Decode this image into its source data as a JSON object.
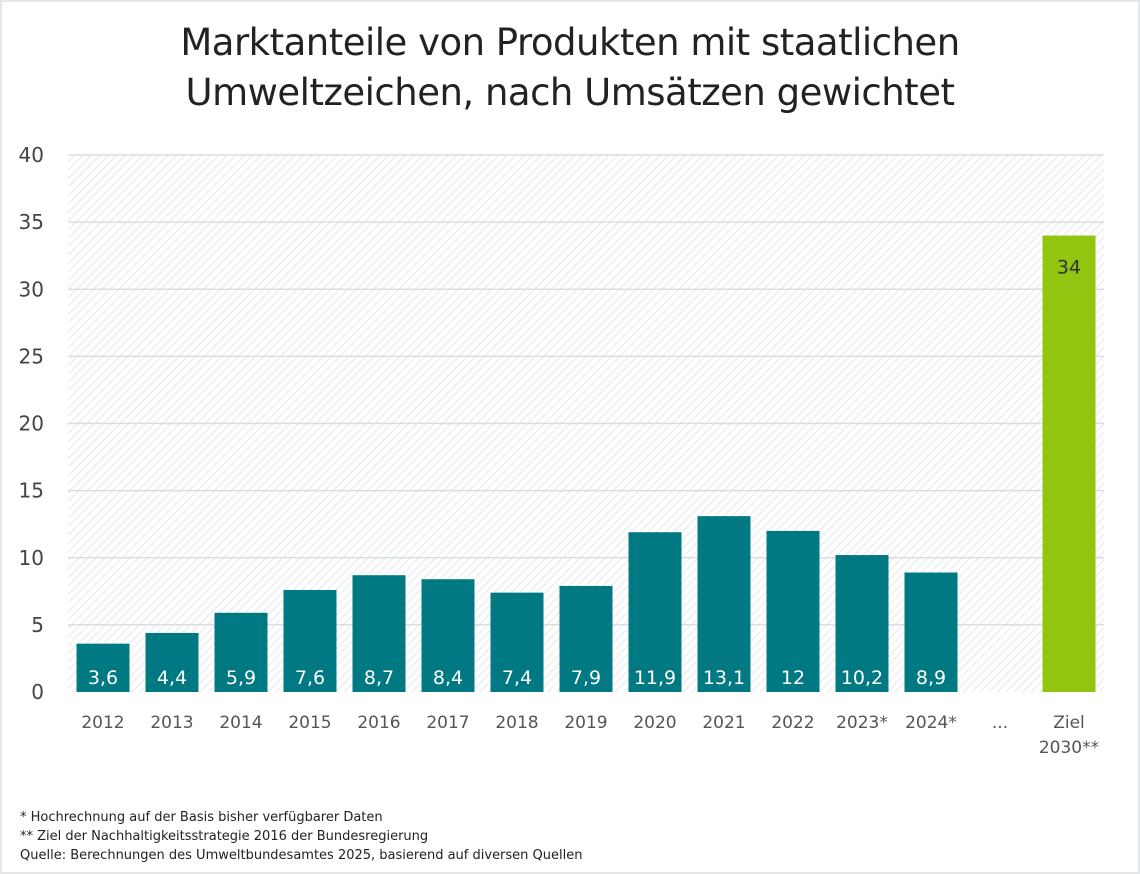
{
  "chart_data": {
    "type": "bar",
    "title": "Marktanteile von Produkten mit staatlichen Umweltzeichen, nach Umsätzen gewichtet",
    "title_lines": [
      "Marktanteile von Produkten mit staatlichen",
      "Umweltzeichen, nach Umsätzen gewichtet"
    ],
    "categories": [
      "2012",
      "2013",
      "2014",
      "2015",
      "2016",
      "2017",
      "2018",
      "2019",
      "2020",
      "2021",
      "2022",
      "2023*",
      "2024*",
      "...",
      "Ziel\n2030**"
    ],
    "values": [
      3.6,
      4.4,
      5.9,
      7.6,
      8.7,
      8.4,
      7.4,
      7.9,
      11.9,
      13.1,
      12,
      10.2,
      8.9,
      null,
      34
    ],
    "data_labels": [
      "3,6",
      "4,4",
      "5,9",
      "7,6",
      "8,7",
      "8,4",
      "7,4",
      "7,9",
      "11,9",
      "13,1",
      "12",
      "10,2",
      "8,9",
      "",
      "34"
    ],
    "ylim": [
      0,
      40
    ],
    "yticks": [
      0,
      5,
      10,
      15,
      20,
      25,
      30,
      35,
      40
    ],
    "grid": true,
    "colors": {
      "bar": "#007982",
      "target": "#91c50f",
      "grid": "#d8dde1",
      "hatch": "#e4e8ec"
    },
    "xlabel": "",
    "ylabel": ""
  },
  "footnotes": [
    "* Hochrechnung auf der Basis bisher verfügbarer Daten",
    "** Ziel der Nachhaltigkeitsstrategie 2016 der Bundesregierung",
    "Quelle: Berechnungen des Umweltbundesamtes 2025, basierend auf diversen Quellen"
  ]
}
